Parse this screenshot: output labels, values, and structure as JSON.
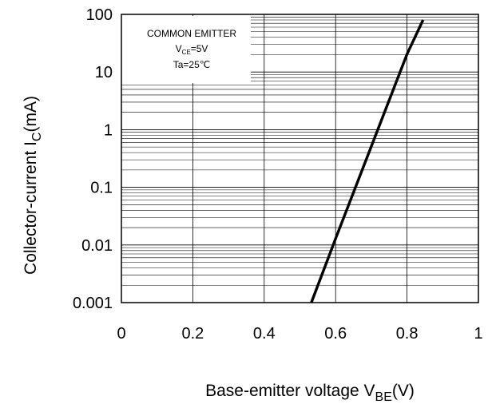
{
  "chart_data": {
    "type": "line",
    "title": "",
    "xlabel": {
      "main": "Base-emitter voltage V",
      "sub": "BE",
      "unit": "(V)"
    },
    "ylabel": {
      "main": "Collector-current I",
      "sub": "C",
      "unit": "(mA)"
    },
    "xlim": [
      0,
      1
    ],
    "ylim": [
      0.001,
      100
    ],
    "yscale": "log",
    "xticks": [
      "0",
      "0.2",
      "0.4",
      "0.6",
      "0.8",
      "1"
    ],
    "yticks": [
      "0.001",
      "0.01",
      "0.1",
      "1",
      "10",
      "100"
    ],
    "grid": true,
    "legend_box": {
      "line1": "COMMON EMITTER",
      "line2_main": "V",
      "line2_sub": "CE",
      "line2_rest": "=5V",
      "line3": "Ta=25℃",
      "position": "top-left"
    },
    "series": [
      {
        "x": [
          0.532,
          0.6,
          0.7,
          0.8,
          0.845
        ],
        "y": [
          0.001,
          0.0129,
          0.513,
          20.4,
          80.0
        ],
        "color": "#000000"
      }
    ]
  }
}
